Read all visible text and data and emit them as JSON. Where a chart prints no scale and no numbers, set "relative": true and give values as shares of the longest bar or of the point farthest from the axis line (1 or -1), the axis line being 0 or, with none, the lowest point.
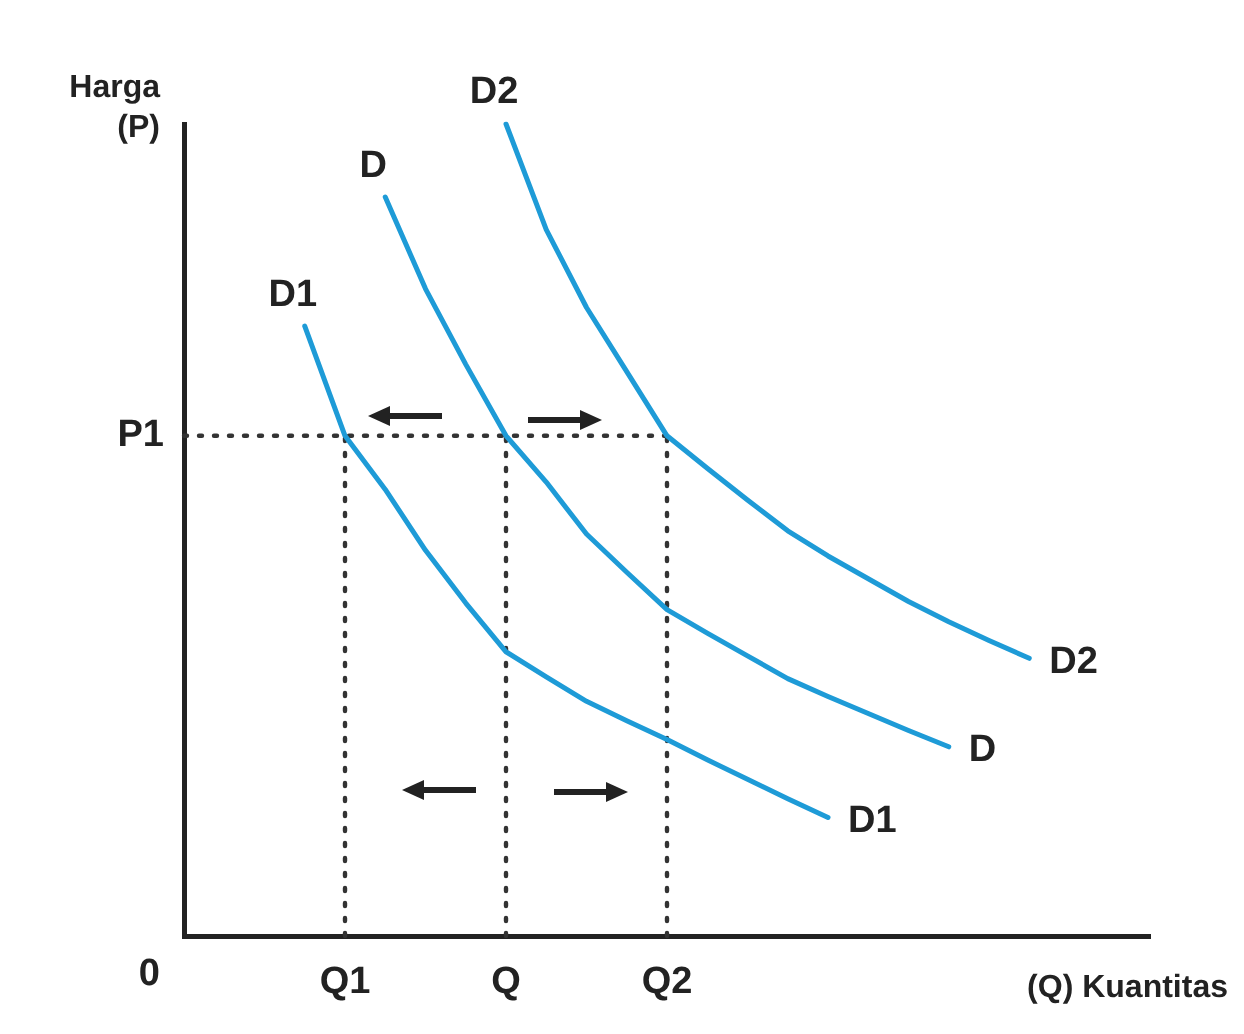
{
  "chart_data": {
    "type": "line",
    "relative": true,
    "xlabel": "(Q) Kuantitas",
    "ylabel": "Harga (P)",
    "tick_labels": "x",
    "grid": false,
    "legend": false,
    "marker": "none",
    "line_style": "solid",
    "categories": [
      null,
      null,
      null,
      null,
      "Q1",
      null,
      null,
      null,
      "Q",
      null,
      null,
      null,
      "Q2",
      null,
      null,
      null,
      null,
      null,
      null,
      null,
      null,
      null,
      null,
      null,
      null
    ],
    "series": [
      {
        "name": "D1",
        "color": "#1e9bd7",
        "values": [
          null,
          null,
          null,
          0.751,
          0.616,
          0.55,
          0.475,
          0.41,
          0.35,
          0.319,
          0.289,
          0.265,
          0.242,
          0.217,
          0.193,
          0.169,
          0.146,
          null,
          null,
          null,
          null,
          null,
          null,
          null,
          null
        ]
      },
      {
        "name": "D",
        "color": "#1e9bd7",
        "values": [
          null,
          null,
          null,
          null,
          null,
          0.91,
          0.797,
          0.704,
          0.616,
          0.559,
          0.495,
          0.448,
          0.402,
          0.373,
          0.345,
          0.317,
          0.295,
          0.274,
          0.253,
          0.233,
          null,
          null,
          null,
          null,
          null
        ]
      },
      {
        "name": "D2",
        "color": "#1e9bd7",
        "values": [
          null,
          null,
          null,
          null,
          null,
          null,
          null,
          null,
          1,
          0.87,
          0.774,
          0.695,
          0.616,
          0.576,
          0.537,
          0.499,
          0.468,
          0.44,
          0.412,
          0.387,
          0.364,
          0.342,
          null,
          null,
          null
        ]
      }
    ],
    "ref_lines": [
      {
        "axis": "y",
        "value": 0.616,
        "label": "P1",
        "line_style": "dotted"
      },
      {
        "axis": "x",
        "value": "Q1",
        "line_style": "dotted"
      },
      {
        "axis": "x",
        "value": "Q",
        "line_style": "dotted"
      },
      {
        "axis": "x",
        "value": "Q2",
        "line_style": "dotted"
      }
    ],
    "annotations": [
      "0"
    ]
  }
}
